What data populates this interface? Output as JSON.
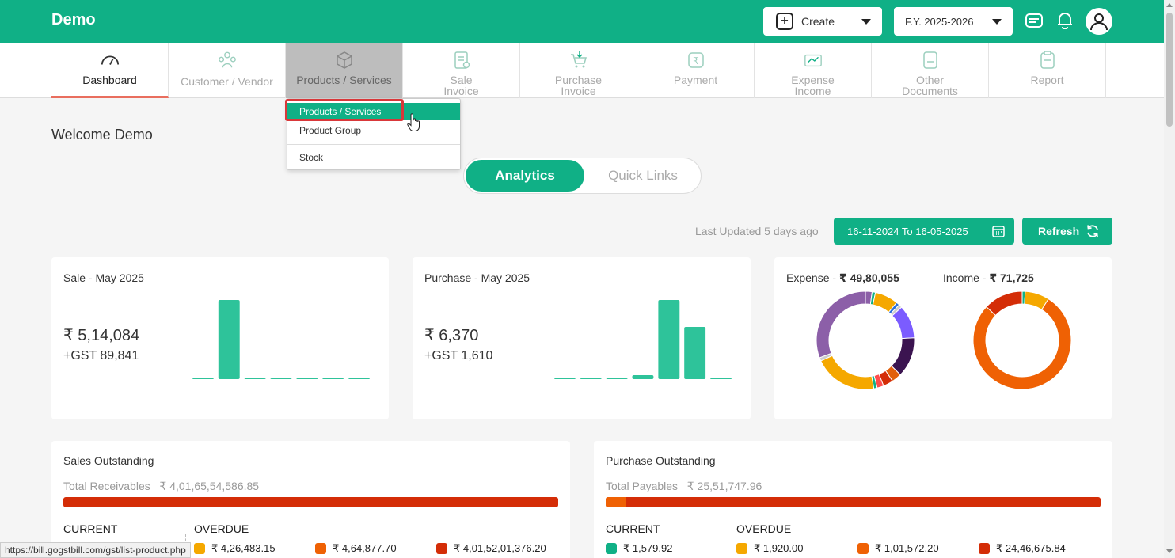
{
  "app": {
    "brand": "Demo"
  },
  "header": {
    "create_label": "Create",
    "fy_label": "F.Y. 2025-2026",
    "icons": [
      "keyboard-icon",
      "bell-icon",
      "user-icon"
    ]
  },
  "nav": {
    "items": [
      {
        "line1": "Dashboard",
        "line2": "",
        "icon": "gauge-icon"
      },
      {
        "line1": "Customer / Vendor",
        "line2": "",
        "icon": "users-icon"
      },
      {
        "line1": "Products / Services",
        "line2": "",
        "icon": "box-icon"
      },
      {
        "line1": "Sale",
        "line2": "Invoice",
        "icon": "invoice-icon"
      },
      {
        "line1": "Purchase",
        "line2": "Invoice",
        "icon": "cart-icon"
      },
      {
        "line1": "Payment",
        "line2": "",
        "icon": "rupee-icon"
      },
      {
        "line1": "Expense",
        "line2": "Income",
        "icon": "wallet-icon"
      },
      {
        "line1": "Other",
        "line2": "Documents",
        "icon": "document-icon"
      },
      {
        "line1": "Report",
        "line2": "",
        "icon": "clipboard-icon"
      }
    ]
  },
  "dropdown": {
    "items": [
      "Products / Services",
      "Product Group",
      "Stock"
    ]
  },
  "welcome": "Welcome Demo",
  "tabs": {
    "analytics": "Analytics",
    "quick_links": "Quick Links"
  },
  "toolbar": {
    "last_updated": "Last Updated 5 days ago",
    "date_range": "16-11-2024 To 16-05-2025",
    "refresh_label": "Refresh"
  },
  "sale_card": {
    "title": "Sale - May 2025",
    "amount": "₹ 5,14,084",
    "gst": "+GST 89,841",
    "bars": [
      0.02,
      1.0,
      0.02,
      0.02,
      0.005,
      0.02,
      0.02
    ]
  },
  "purchase_card": {
    "title": "Purchase - May 2025",
    "amount": "₹ 6,370",
    "gst": "+GST 1,610",
    "bars": [
      0.02,
      0.02,
      0.02,
      0.05,
      1.0,
      0.66,
      0.01
    ]
  },
  "pie_card": {
    "expense_label": "Expense - ",
    "expense_value": "₹ 49,80,055",
    "income_label": "Income - ",
    "income_value": "₹ 71,725",
    "expense_slices": [
      {
        "value": 2,
        "color": "#8c5fa8"
      },
      {
        "value": 1,
        "color": "#10b086"
      },
      {
        "value": 7,
        "color": "#f5a800"
      },
      {
        "value": 1,
        "color": "#2a6fdb"
      },
      {
        "value": 1,
        "color": "#cccccc"
      },
      {
        "value": 10,
        "color": "#7b5cff"
      },
      {
        "value": 12,
        "color": "#3b1450"
      },
      {
        "value": 3,
        "color": "#e2600c"
      },
      {
        "value": 3,
        "color": "#d42d07"
      },
      {
        "value": 2,
        "color": "#ff4c4c"
      },
      {
        "value": 1,
        "color": "#10b086"
      },
      {
        "value": 19,
        "color": "#f5a800"
      },
      {
        "value": 1,
        "color": "#cccccc"
      },
      {
        "value": 28,
        "color": "#8c5fa8"
      }
    ],
    "income_slices": [
      {
        "value": 1,
        "color": "#10b086"
      },
      {
        "value": 8,
        "color": "#f5a800"
      },
      {
        "value": 78,
        "color": "#ef6104"
      },
      {
        "value": 13,
        "color": "#d42d07"
      }
    ]
  },
  "sales_outstanding": {
    "title": "Sales Outstanding",
    "total_label": "Total Receivables",
    "total_value": "₹ 4,01,65,54,586.85",
    "current_fraction": 0.0,
    "current_label": "CURRENT",
    "overdue_label": "OVERDUE",
    "legend": [
      {
        "value": "₹ 4,26,483.15",
        "color": "#f5a800"
      },
      {
        "value": "₹ 4,64,877.70",
        "color": "#ef6104"
      },
      {
        "value": "₹ 4,01,52,01,376.20",
        "color": "#d42d07"
      }
    ]
  },
  "purchase_outstanding": {
    "title": "Purchase Outstanding",
    "total_label": "Total Payables",
    "total_value": "₹ 25,51,747.96",
    "current_fraction": 0.04,
    "current_label": "CURRENT",
    "overdue_label": "OVERDUE",
    "legend": [
      {
        "value": "₹ 1,579.92",
        "color": "#10b086"
      },
      {
        "value": "₹ 1,920.00",
        "color": "#f5a800"
      },
      {
        "value": "₹ 1,01,572.20",
        "color": "#ef6104"
      },
      {
        "value": "₹ 24,46,675.84",
        "color": "#d42d07"
      }
    ]
  },
  "statusbar": {
    "url": "https://bill.gogstbill.com/gst/list-product.php"
  },
  "colors": {
    "primary": "#10b086",
    "active_underline": "#e96e5e",
    "highlight": "#d9383a"
  }
}
